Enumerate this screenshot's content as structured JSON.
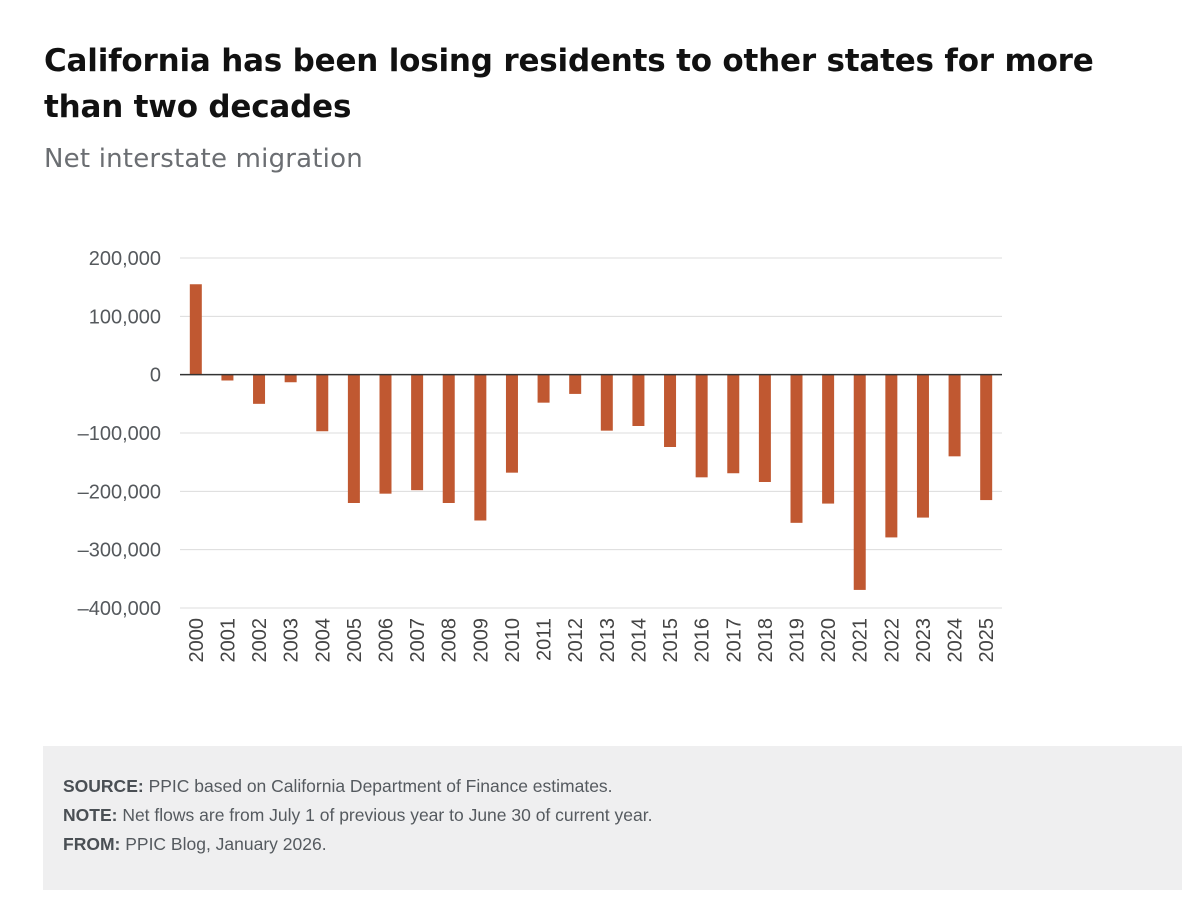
{
  "title": "California has been losing residents to other states for more than two decades",
  "subtitle": "Net interstate migration",
  "chart_data": {
    "type": "bar",
    "categories": [
      "2000",
      "2001",
      "2002",
      "2003",
      "2004",
      "2005",
      "2006",
      "2007",
      "2008",
      "2009",
      "2010",
      "2011",
      "2012",
      "2013",
      "2014",
      "2015",
      "2016",
      "2017",
      "2018",
      "2019",
      "2020",
      "2021",
      "2022",
      "2023",
      "2024",
      "2025"
    ],
    "values": [
      155000,
      -10000,
      -50000,
      -13000,
      -97000,
      -220000,
      -204000,
      -198000,
      -220000,
      -250000,
      -168000,
      -48000,
      -33000,
      -96000,
      -88000,
      -124000,
      -176000,
      -169000,
      -184000,
      -254000,
      -221000,
      -369000,
      -279000,
      -245000,
      -140000,
      -215000
    ],
    "ylim": [
      -400000,
      200000
    ],
    "yticks": [
      200000,
      100000,
      0,
      -100000,
      -200000,
      -300000,
      -400000
    ],
    "ytick_labels": [
      "200,000",
      "100,000",
      "0",
      "–100,000",
      "–200,000",
      "–300,000",
      "–400,000"
    ],
    "bar_color": "#c05831",
    "grid": true
  },
  "footer": {
    "source_label": "SOURCE:",
    "source_text": " PPIC based on California Department of Finance estimates.",
    "note_label": "NOTE:",
    "note_text": " Net flows are from July 1 of previous year to June 30 of current year.",
    "from_label": "FROM:",
    "from_text": " PPIC Blog, January 2026."
  }
}
